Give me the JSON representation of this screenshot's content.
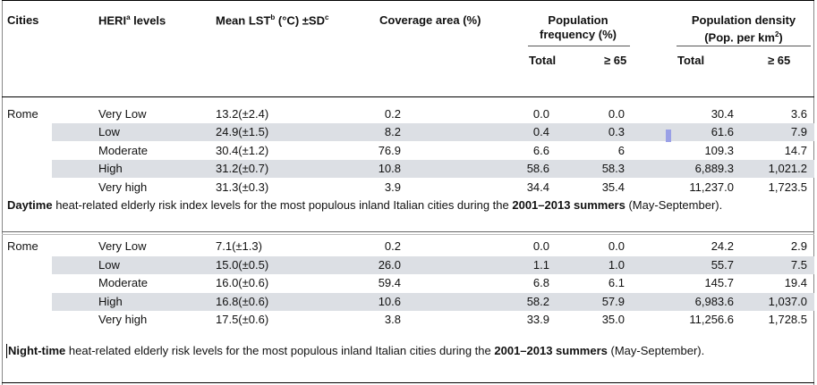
{
  "header": {
    "cities": "Cities",
    "heri_main": "HERI",
    "heri_sup": "a",
    "heri_tail": " levels",
    "lst_main": "Mean LST",
    "lst_sup": "b",
    "lst_mid": " (°C) ±SD",
    "lst_sup2": "c",
    "coverage": "Coverage area (%)",
    "pop_freq_line1": "Population",
    "pop_freq_line2": "frequency (%)",
    "pop_den_line1": "Population density",
    "pop_den_line2_a": "(Pop. per km",
    "pop_den_line2_sup": "2",
    "pop_den_line2_b": ")",
    "total": "Total",
    "ge65": "≥ 65"
  },
  "day": {
    "city": "Rome",
    "rows": [
      {
        "level": "Very Low",
        "lst": "13.2(±2.4)",
        "cov": "0.2",
        "pf_total": "0.0",
        "pf_65": "0.0",
        "pd_total": "30.4",
        "pd_65": "3.6"
      },
      {
        "level": "Low",
        "lst": "24.9(±1.5)",
        "cov": "8.2",
        "pf_total": "0.4",
        "pf_65": "0.3",
        "pd_total": "61.6",
        "pd_65": "7.9"
      },
      {
        "level": "Moderate",
        "lst": "30.4(±1.2)",
        "cov": "76.9",
        "pf_total": "6.6",
        "pf_65": "6",
        "pd_total": "109.3",
        "pd_65": "14.7"
      },
      {
        "level": "High",
        "lst": "31.2(±0.7)",
        "cov": "10.8",
        "pf_total": "58.6",
        "pf_65": "58.3",
        "pd_total": "6,889.3",
        "pd_65": "1,021.2"
      },
      {
        "level": "Very high",
        "lst": "31.3(±0.3)",
        "cov": "3.9",
        "pf_total": "34.4",
        "pf_65": "35.4",
        "pd_total": "11,237.0",
        "pd_65": "1,723.5"
      }
    ],
    "caption": {
      "b1": "Daytime",
      "t1": " heat-related elderly risk index levels for the most populous inland Italian cities during the ",
      "b2": "2001–2013 summers",
      "t2": " (May-September)."
    }
  },
  "night": {
    "city": "Rome",
    "rows": [
      {
        "level": "Very Low",
        "lst": "7.1(±1.3)",
        "cov": "0.2",
        "pf_total": "0.0",
        "pf_65": "0.0",
        "pd_total": "24.2",
        "pd_65": "2.9"
      },
      {
        "level": "Low",
        "lst": "15.0(±0.5)",
        "cov": "26.0",
        "pf_total": "1.1",
        "pf_65": "1.0",
        "pd_total": "55.7",
        "pd_65": "7.5"
      },
      {
        "level": "Moderate",
        "lst": "16.0(±0.6)",
        "cov": "59.4",
        "pf_total": "6.8",
        "pf_65": "6.1",
        "pd_total": "145.7",
        "pd_65": "19.4"
      },
      {
        "level": "High",
        "lst": "16.8(±0.6)",
        "cov": "10.6",
        "pf_total": "58.2",
        "pf_65": "57.9",
        "pd_total": "6,983.6",
        "pd_65": "1,037.0"
      },
      {
        "level": "Very high",
        "lst": "17.5(±0.6)",
        "cov": "3.8",
        "pf_total": "33.9",
        "pf_65": "35.0",
        "pd_total": "11,256.6",
        "pd_65": "1,728.5"
      }
    ],
    "caption": {
      "b1": "Night-time",
      "t1": " heat-related elderly risk levels for the most populous inland Italian cities during the ",
      "b2": "2001–2013 summers",
      "t2": " (May-September)."
    }
  }
}
